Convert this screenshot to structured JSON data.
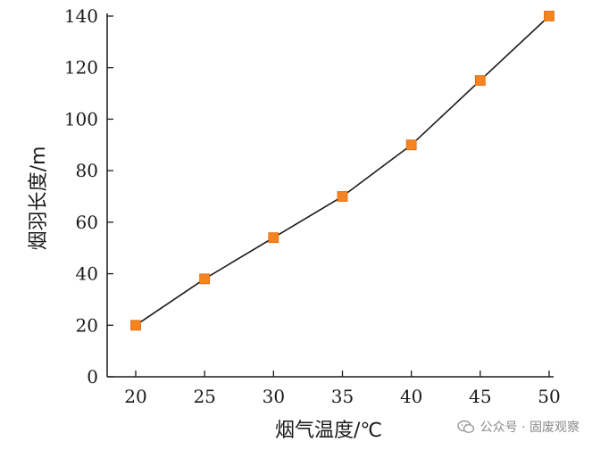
{
  "chart_data": {
    "type": "line",
    "title": "",
    "xlabel": "烟气温度/℃",
    "ylabel": "烟羽长度/m",
    "x": [
      20,
      25,
      30,
      35,
      40,
      45,
      50
    ],
    "series": [
      {
        "name": "烟羽长度",
        "values": [
          20,
          38,
          54,
          70,
          90,
          115,
          140
        ]
      }
    ],
    "xlim": [
      18,
      50
    ],
    "ylim": [
      0,
      140
    ],
    "xticks": [
      20,
      25,
      30,
      35,
      40,
      45,
      50
    ],
    "yticks": [
      0,
      20,
      40,
      60,
      80,
      100,
      120,
      140
    ],
    "grid": false,
    "colors": {
      "line": "#1a1a1a",
      "marker": "#f5831f",
      "marker_edge": "#d96a10",
      "axis": "#1a1a1a"
    }
  },
  "watermark": {
    "text": "公众号 · 固废观察",
    "icon": "wechat-icon"
  }
}
